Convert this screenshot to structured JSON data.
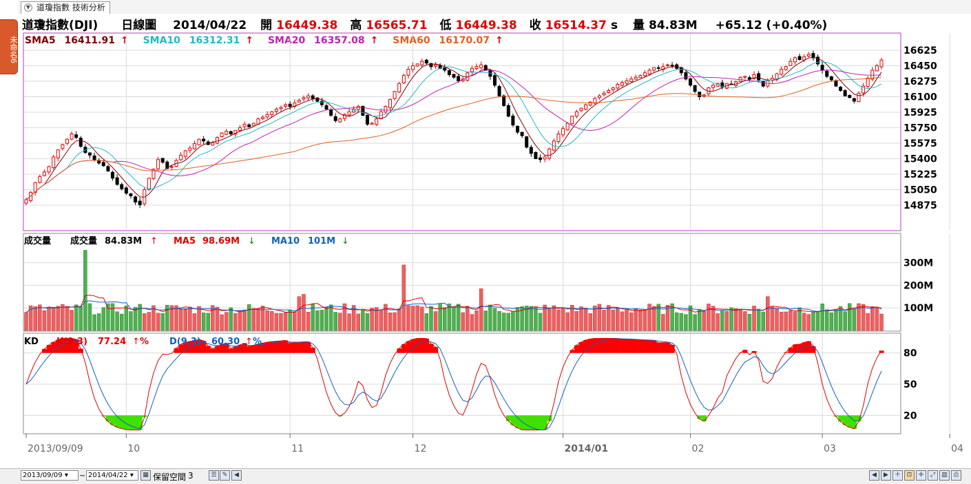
{
  "app": {
    "side_tab_label": "未命名6",
    "tab_title": "道瓊指數 技術分析"
  },
  "header": {
    "symbol": "道瓊指數(DJI)",
    "period": "日線圖",
    "date": "2014/04/22",
    "open_label": "開",
    "open": "16449.38",
    "high_label": "高",
    "high": "16565.71",
    "low_label": "低",
    "low": "16449.38",
    "close_label": "收",
    "close": "16514.37",
    "close_suffix": "s",
    "volume_label": "量",
    "volume": "84.83M",
    "change": "+65.12 (+0.40%)"
  },
  "sma": [
    {
      "label": "SMA5",
      "value": "16411.91",
      "color": "#800000"
    },
    {
      "label": "SMA10",
      "value": "16312.31",
      "color": "#20b8c8"
    },
    {
      "label": "SMA20",
      "value": "16357.08",
      "color": "#c020b0"
    },
    {
      "label": "SMA60",
      "value": "16170.07",
      "color": "#e06020"
    }
  ],
  "volume_legend": {
    "title": "成交量",
    "vol_label": "成交量",
    "vol_value": "84.83M",
    "ma5_label": "MA5",
    "ma5_value": "98.69M",
    "ma10_label": "MA10",
    "ma10_value": "101M"
  },
  "kd_legend": {
    "title": "KD",
    "k_label": "K(9,3)",
    "k_value": "77.24",
    "k_unit": "%",
    "d_label": "D(9,3)",
    "d_value": "60.30",
    "d_unit": "%"
  },
  "bottom": {
    "from_date": "2013/09/09",
    "to_date": "2014/04/22",
    "reserve_label": "保留空間",
    "reserve_value": "3"
  },
  "chart_data": [
    {
      "type": "candlestick",
      "panel": "price",
      "y_ticks": [
        16625,
        16450,
        16275,
        16100,
        15925,
        15750,
        15575,
        15400,
        15225,
        15050,
        14875
      ],
      "ylim": [
        14720,
        16720
      ],
      "x_labels": [
        "2013/09/09",
        "10",
        "11",
        "12",
        "2014/01",
        "02",
        "03",
        "04"
      ],
      "x_label_index": [
        0,
        22,
        58,
        85,
        118,
        146,
        175,
        203
      ],
      "close": [
        14937,
        15020,
        15130,
        15200,
        15250,
        15310,
        15420,
        15500,
        15560,
        15620,
        15680,
        15640,
        15540,
        15470,
        15440,
        15390,
        15350,
        15320,
        15260,
        15180,
        15110,
        15060,
        15010,
        14980,
        14910,
        14880,
        15050,
        15180,
        15280,
        15390,
        15360,
        15290,
        15310,
        15380,
        15440,
        15490,
        15520,
        15570,
        15620,
        15600,
        15560,
        15580,
        15640,
        15690,
        15710,
        15680,
        15720,
        15750,
        15790,
        15760,
        15800,
        15850,
        15870,
        15900,
        15930,
        15960,
        15980,
        16010,
        15990,
        16030,
        16060,
        16090,
        16110,
        16080,
        16050,
        16010,
        15960,
        15890,
        15830,
        15850,
        15900,
        15930,
        15960,
        15990,
        15890,
        15790,
        15800,
        15850,
        15930,
        15990,
        16070,
        16160,
        16250,
        16340,
        16410,
        16450,
        16470,
        16500,
        16480,
        16440,
        16460,
        16420,
        16400,
        16350,
        16320,
        16280,
        16300,
        16370,
        16420,
        16440,
        16460,
        16400,
        16330,
        16230,
        16110,
        16000,
        15880,
        15780,
        15700,
        15660,
        15530,
        15460,
        15400,
        15390,
        15420,
        15510,
        15600,
        15680,
        15740,
        15800,
        15880,
        15930,
        15970,
        16010,
        16040,
        16080,
        16110,
        16140,
        16170,
        16200,
        16240,
        16260,
        16280,
        16300,
        16320,
        16340,
        16370,
        16400,
        16430,
        16420,
        16440,
        16460,
        16450,
        16420,
        16370,
        16300,
        16230,
        16160,
        16100,
        16120,
        16200,
        16230,
        16250,
        16210,
        16250,
        16240,
        16270,
        16320,
        16330,
        16300,
        16350,
        16290,
        16220,
        16280,
        16310,
        16360,
        16410,
        16440,
        16500,
        16540,
        16520,
        16550,
        16580,
        16540,
        16470,
        16400,
        16330,
        16290,
        16220,
        16170,
        16110,
        16090,
        16050,
        16140,
        16220,
        16310,
        16400,
        16450,
        16514
      ],
      "volume_unit": "M"
    },
    {
      "type": "bar",
      "panel": "volume",
      "y_ticks": [
        300,
        200,
        100
      ],
      "ylim": [
        0,
        390
      ],
      "ylabel": "",
      "unit": "M"
    },
    {
      "type": "line",
      "panel": "kd",
      "y_ticks": [
        80,
        50,
        20
      ],
      "ylim": [
        5,
        95
      ],
      "series": [
        {
          "name": "K(9,3)",
          "color": "#e00000"
        },
        {
          "name": "D(9,3)",
          "color": "#1060c0"
        }
      ]
    }
  ]
}
